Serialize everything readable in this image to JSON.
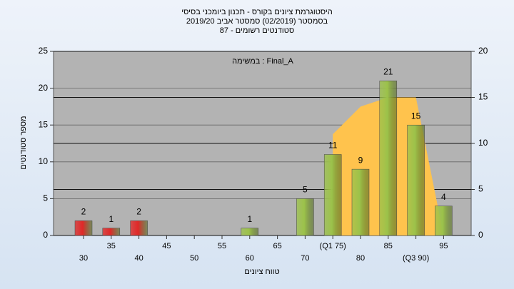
{
  "chart_data": {
    "type": "bar",
    "title": [
      "היסטוגרמת ציונים בקורס - תכנון ביומכני בסיסי",
      "בסמסטר (02/2019)  סמסטר אביב 2019/20",
      "סטודנטים רשומים - 87"
    ],
    "annotation": "במשימה : Final_A",
    "x_label": "טווח ציונים",
    "y_label": "מספר סטודנטים",
    "categories": [
      "30",
      "35",
      "40",
      "45",
      "50",
      "55",
      "60",
      "65",
      "70",
      "(Q1 75)",
      "80",
      "85",
      "(Q3 90)",
      "95"
    ],
    "values": [
      2,
      1,
      2,
      0,
      0,
      0,
      1,
      0,
      5,
      11,
      9,
      21,
      15,
      4
    ],
    "bar_colors": [
      "#e02828",
      "#e02828",
      "#e02828",
      "#9cc24a",
      "#9cc24a",
      "#9cc24a",
      "#9cc24a",
      "#9cc24a",
      "#9cc24a",
      "#9cc24a",
      "#9cc24a",
      "#9cc24a",
      "#9cc24a",
      "#9cc24a"
    ],
    "area": {
      "axis": "y2",
      "color": "#ffc34d",
      "values": [
        null,
        null,
        null,
        null,
        null,
        null,
        null,
        null,
        null,
        11,
        14,
        15,
        15,
        0
      ]
    },
    "ylim": [
      0,
      25
    ],
    "yticks": [
      0,
      5,
      10,
      15,
      20,
      25
    ],
    "y2lim": [
      0,
      20
    ],
    "y2ticks": [
      0,
      5,
      10,
      15,
      20
    ],
    "grid": true
  }
}
